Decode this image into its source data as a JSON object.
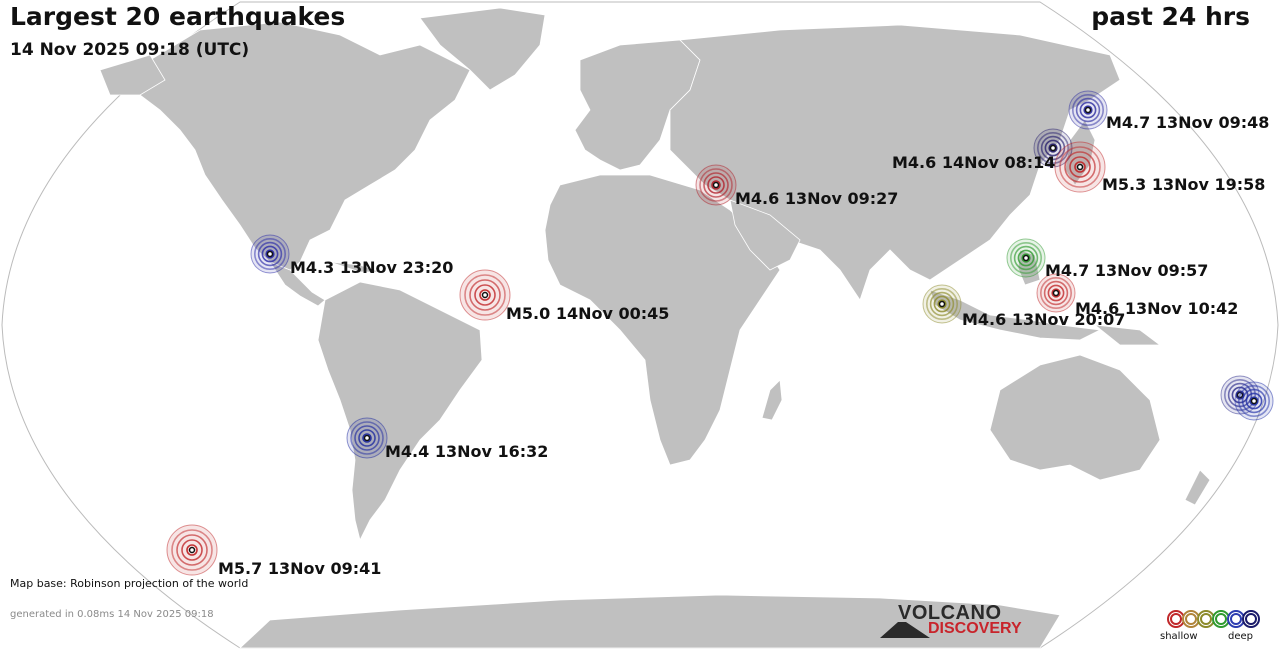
{
  "header": {
    "title": "Largest 20 earthquakes",
    "datetime": "14 Nov 2025 09:18 (UTC)",
    "period": "past 24 hrs"
  },
  "colors": {
    "ocean": "#ffffff",
    "land": "#c0c0c0",
    "border": "#ffffff",
    "depth_scale": [
      "#c0282a",
      "#b0843a",
      "#8c8a2a",
      "#2f9a2f",
      "#2c3cb0",
      "#1a1a6a"
    ]
  },
  "quakes": [
    {
      "label": "M4.7 13Nov 09:48",
      "depth": "deep",
      "color": "#2c2ca0"
    },
    {
      "label": "M4.6 14Nov 08:14",
      "depth": "deep",
      "color": "#28206e"
    },
    {
      "label": "M5.3 13Nov 19:58",
      "depth": "shallow",
      "color": "#c0282a"
    },
    {
      "label": "M4.6 13Nov 09:27",
      "depth": "shallow",
      "color": "#b0202a"
    },
    {
      "label": "M4.3 13Nov 23:20",
      "depth": "deep",
      "color": "#2a2aa8"
    },
    {
      "label": "M5.0 14Nov 00:45",
      "depth": "shallow",
      "color": "#c0282a"
    },
    {
      "label": "M4.7 13Nov 09:57",
      "depth": "intermediate",
      "color": "#2f9a2f"
    },
    {
      "label": "M4.6 13Nov 10:42",
      "depth": "shallow",
      "color": "#c0282a"
    },
    {
      "label": "M4.6 13Nov 20:07",
      "depth": "shallow",
      "color": "#8c8a2a"
    },
    {
      "label": "M4.4 13Nov 16:32",
      "depth": "deep",
      "color": "#1e2aa0"
    },
    {
      "label": "M5.7 13Nov 09:41",
      "depth": "shallow",
      "color": "#c0282a"
    },
    {
      "label": "",
      "depth": "deep",
      "color": "#2a2a8a"
    },
    {
      "label": "",
      "depth": "deep",
      "color": "#2030a8"
    }
  ],
  "footer": {
    "basemap_note": "Map base: Robinson projection of the world",
    "generated": "generated in 0.08ms 14 Nov 2025 09:18",
    "logo_line1": "VOLCANO",
    "logo_line2": "DISCOVERY",
    "legend_shallow": "shallow",
    "legend_deep": "deep"
  }
}
